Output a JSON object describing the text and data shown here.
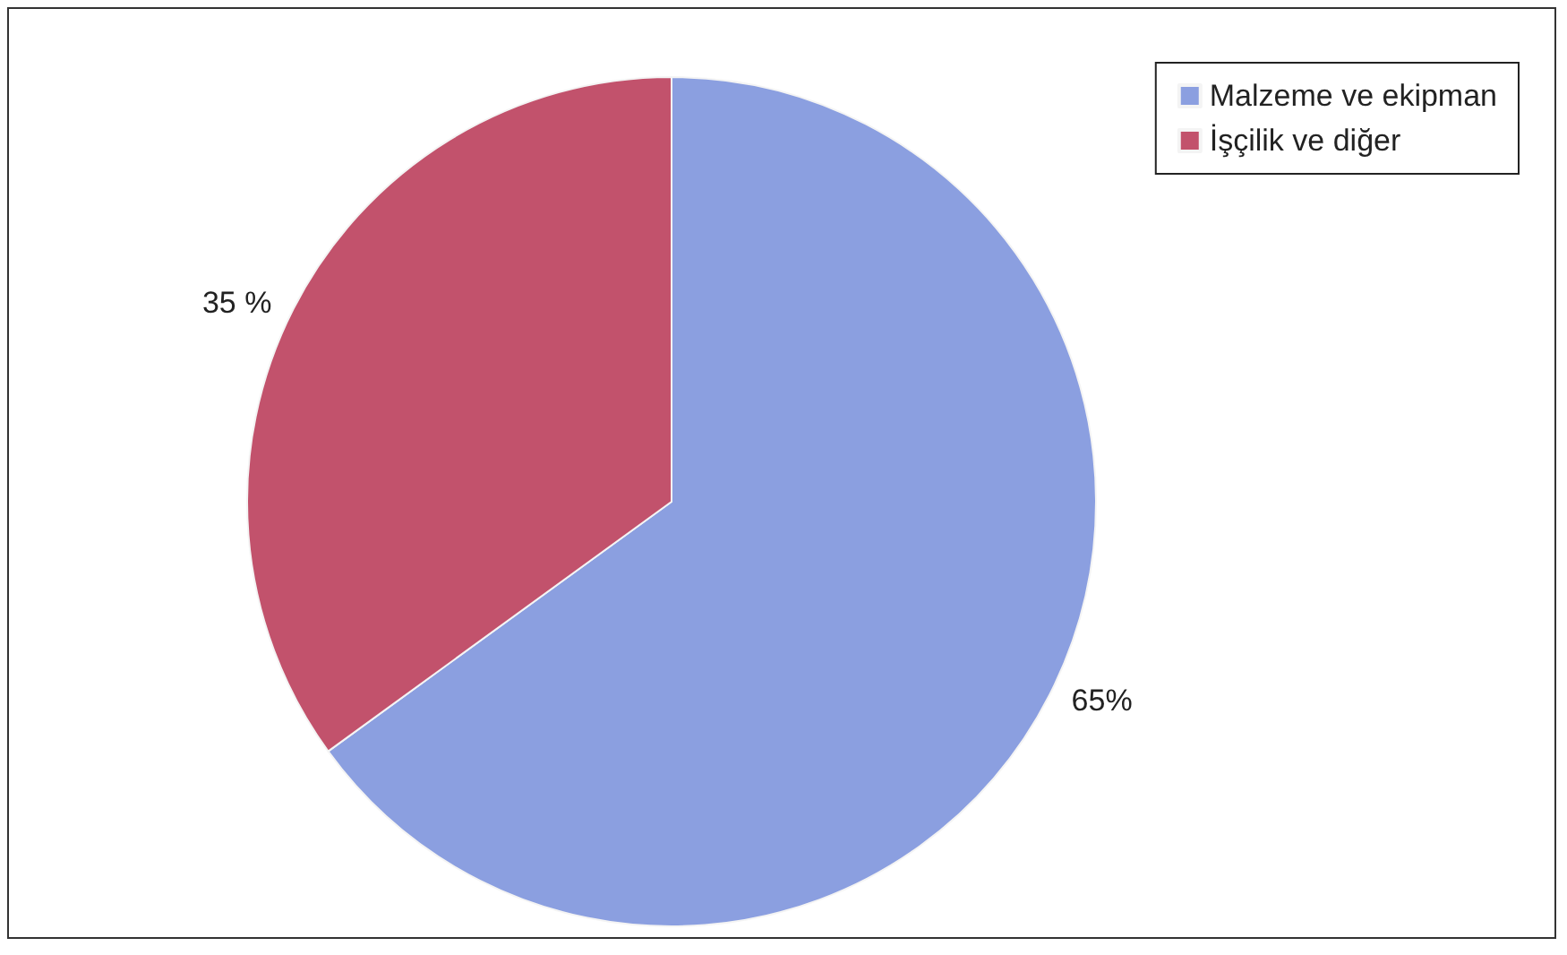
{
  "chart_data": {
    "type": "pie",
    "categories": [
      "Malzeme ve ekipman",
      "İşçilik ve diğer"
    ],
    "values": [
      65,
      35
    ],
    "colors": [
      "#8b9fe0",
      "#c2526c"
    ],
    "value_labels": [
      "65%",
      "35 %"
    ],
    "legend": "top right"
  }
}
